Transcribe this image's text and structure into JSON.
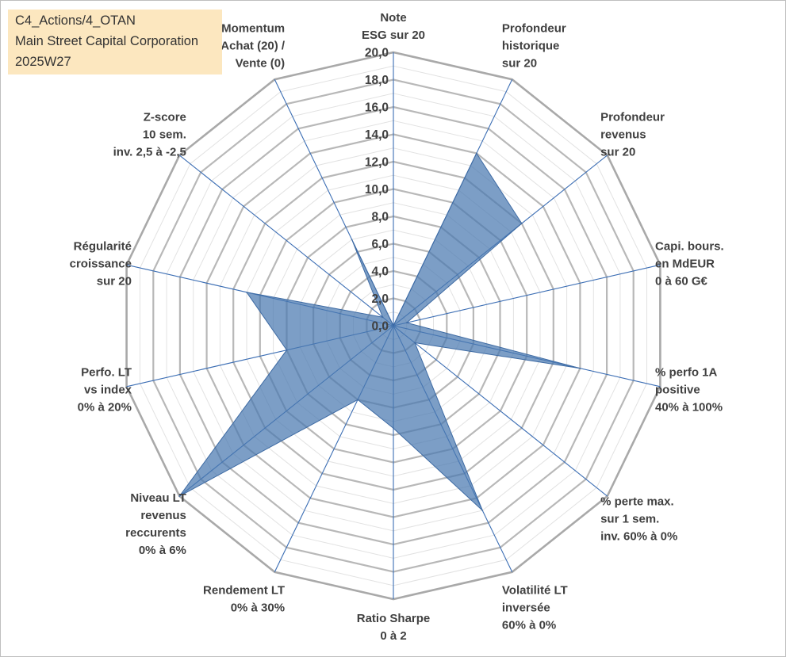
{
  "info_box": {
    "line1": "C4_Actions/4_OTAN",
    "line2": "Main Street Capital Corporation",
    "line3": "2025W27"
  },
  "chart_data": {
    "type": "radar",
    "title": "",
    "rmin": 0,
    "rmax": 20,
    "tick_step": 2,
    "tick_labels": [
      "0,0",
      "2,0",
      "4,0",
      "6,0",
      "8,0",
      "10,0",
      "12,0",
      "14,0",
      "16,0",
      "18,0",
      "20,0"
    ],
    "grid": true,
    "axes": [
      {
        "label": [
          "Note",
          "ESG sur 20"
        ]
      },
      {
        "label": [
          "Profondeur",
          "historique",
          "sur 20"
        ]
      },
      {
        "label": [
          "Profondeur",
          "revenus",
          "sur 20"
        ]
      },
      {
        "label": [
          "Capi. bours.",
          "en MdEUR",
          "0 à 60 G€"
        ]
      },
      {
        "label": [
          "% perfo 1A",
          "positive",
          "40% à 100%"
        ]
      },
      {
        "label": [
          "% perte max.",
          "sur 1 sem.",
          "inv. 60% à 0%"
        ]
      },
      {
        "label": [
          "Volatilité LT",
          "inversée",
          "60% à 0%"
        ]
      },
      {
        "label": [
          "Ratio Sharpe",
          "0 à 2"
        ]
      },
      {
        "label": [
          "Rendement LT",
          "0% à 30%"
        ]
      },
      {
        "label": [
          "Niveau LT",
          "revenus",
          "reccurents",
          "0% à 6%"
        ]
      },
      {
        "label": [
          "Perfo. LT",
          "vs index",
          "0% à 20%"
        ]
      },
      {
        "label": [
          "Régularité",
          "croissance",
          "sur 20"
        ]
      },
      {
        "label": [
          "Z-score",
          "10 sem.",
          "inv. 2,5 à -2,5"
        ]
      },
      {
        "label": [
          "Momentum",
          "Achat (20) /",
          "Vente (0)"
        ]
      }
    ],
    "series": [
      {
        "values": [
          0,
          14,
          12,
          1,
          14,
          2,
          15,
          7.5,
          6,
          20,
          8,
          11,
          1,
          7
        ],
        "fill": "#4a78b0",
        "stroke": "#3d6aa3"
      }
    ],
    "colors": {
      "grid": "#b8b8b8",
      "grid_outer": "#a9a9a9",
      "spoke": "#3c6eb4",
      "label": "#404040"
    }
  }
}
